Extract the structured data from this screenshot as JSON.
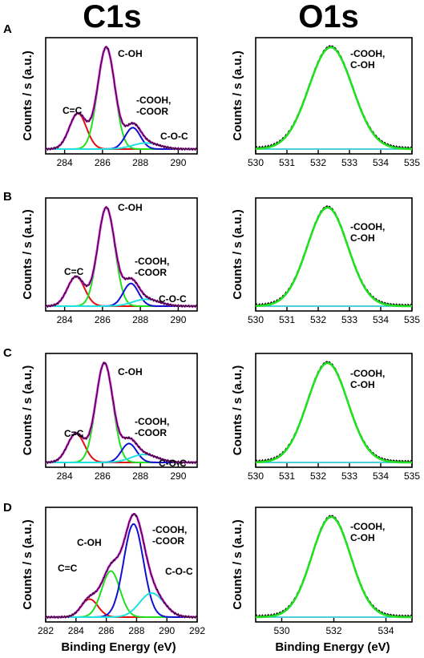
{
  "figure": {
    "col_titles": [
      "C1s",
      "O1s"
    ],
    "row_labels": [
      "A",
      "B",
      "C",
      "D"
    ],
    "ylabel": "Counts / s (a.u.)",
    "xlabel": "Binding Energy (eV)"
  },
  "colors": {
    "envelope": "#e020e0",
    "c_c": "#e01010",
    "c_oh": "#20e020",
    "cooh": "#1010d0",
    "coc": "#20e0e0",
    "raw": "#000000",
    "o1s_fit": "#20e020",
    "baseline": "#10c0d0"
  },
  "chart_data": [
    {
      "type": "line",
      "panel": "A",
      "region": "C1s",
      "xlim": [
        283,
        291
      ],
      "xticks": [
        284,
        286,
        288,
        290
      ],
      "tick_labels": [
        "284",
        "286",
        "288",
        "290"
      ],
      "peaks": [
        {
          "label": "C=C",
          "center": 284.7,
          "height": 0.35,
          "sigma": 0.45,
          "color": "#e01010"
        },
        {
          "label": "C-OH",
          "center": 286.2,
          "height": 1.0,
          "sigma": 0.45,
          "color": "#20e020"
        },
        {
          "label": "-COOH,\n-COOR",
          "center": 287.6,
          "height": 0.21,
          "sigma": 0.4,
          "color": "#1010d0"
        },
        {
          "label": "C-O-C",
          "center": 288.3,
          "height": 0.06,
          "sigma": 0.7,
          "color": "#20e0e0"
        }
      ]
    },
    {
      "type": "line",
      "panel": "A",
      "region": "O1s",
      "xlim": [
        530,
        535
      ],
      "xticks": [
        530,
        531,
        532,
        533,
        534,
        535
      ],
      "tick_labels": [
        "530",
        "531",
        "532",
        "533",
        "534",
        "535"
      ],
      "peaks": [
        {
          "label": "-COOH,\nC-OH",
          "center": 532.4,
          "height": 1.0,
          "sigma": 0.7,
          "color": "#20e020"
        }
      ]
    },
    {
      "type": "line",
      "panel": "B",
      "region": "C1s",
      "xlim": [
        283,
        291
      ],
      "xticks": [
        284,
        286,
        288,
        290
      ],
      "tick_labels": [
        "284",
        "286",
        "288",
        "290"
      ],
      "peaks": [
        {
          "label": "C=C",
          "center": 284.6,
          "height": 0.3,
          "sigma": 0.45,
          "color": "#e01010"
        },
        {
          "label": "C-OH",
          "center": 286.2,
          "height": 1.0,
          "sigma": 0.45,
          "color": "#20e020"
        },
        {
          "label": "-COOH,\n-COOR",
          "center": 287.5,
          "height": 0.23,
          "sigma": 0.4,
          "color": "#1010d0"
        },
        {
          "label": "C-O-C",
          "center": 288.3,
          "height": 0.07,
          "sigma": 0.7,
          "color": "#20e0e0"
        }
      ]
    },
    {
      "type": "line",
      "panel": "B",
      "region": "O1s",
      "xlim": [
        530,
        535
      ],
      "xticks": [
        530,
        531,
        532,
        533,
        534,
        535
      ],
      "tick_labels": [
        "530",
        "531",
        "532",
        "533",
        "534",
        "535"
      ],
      "peaks": [
        {
          "label": "-COOH,\nC-OH",
          "center": 532.3,
          "height": 1.0,
          "sigma": 0.65,
          "color": "#20e020"
        }
      ]
    },
    {
      "type": "line",
      "panel": "C",
      "region": "C1s",
      "xlim": [
        283,
        291
      ],
      "xticks": [
        284,
        286,
        288,
        290
      ],
      "tick_labels": [
        "284",
        "286",
        "288",
        "290"
      ],
      "peaks": [
        {
          "label": "C=C",
          "center": 284.6,
          "height": 0.29,
          "sigma": 0.45,
          "color": "#e01010"
        },
        {
          "label": "C-OH",
          "center": 286.1,
          "height": 1.0,
          "sigma": 0.45,
          "color": "#20e020"
        },
        {
          "label": "-COOH,\n-COOR",
          "center": 287.4,
          "height": 0.19,
          "sigma": 0.4,
          "color": "#1010d0"
        },
        {
          "label": "C-O-C",
          "center": 288.2,
          "height": 0.08,
          "sigma": 0.7,
          "color": "#20e0e0"
        }
      ]
    },
    {
      "type": "line",
      "panel": "C",
      "region": "O1s",
      "xlim": [
        530,
        535
      ],
      "xticks": [
        530,
        531,
        532,
        533,
        534,
        535
      ],
      "tick_labels": [
        "530",
        "531",
        "532",
        "533",
        "534",
        "535"
      ],
      "peaks": [
        {
          "label": "-COOH,\nC-OH",
          "center": 532.3,
          "height": 1.0,
          "sigma": 0.65,
          "color": "#20e020"
        }
      ]
    },
    {
      "type": "line",
      "panel": "D",
      "region": "C1s",
      "xlim": [
        282,
        292
      ],
      "xticks": [
        282,
        284,
        286,
        288,
        290,
        292
      ],
      "tick_labels": [
        "282",
        "284",
        "286",
        "288",
        "290",
        "292"
      ],
      "peaks": [
        {
          "label": "C=C",
          "center": 284.9,
          "height": 0.18,
          "sigma": 0.55,
          "color": "#e01010"
        },
        {
          "label": "C-OH",
          "center": 286.3,
          "height": 0.46,
          "sigma": 0.6,
          "color": "#20e020"
        },
        {
          "label": "-COOH,\n-COOR",
          "center": 287.8,
          "height": 0.93,
          "sigma": 0.65,
          "color": "#1010d0"
        },
        {
          "label": "C-O-C",
          "center": 289.0,
          "height": 0.24,
          "sigma": 0.8,
          "color": "#20e0e0"
        }
      ]
    },
    {
      "type": "line",
      "panel": "D",
      "region": "O1s",
      "xlim": [
        529,
        535
      ],
      "xticks": [
        530,
        532,
        534
      ],
      "tick_labels": [
        "530",
        "532",
        "534"
      ],
      "peaks": [
        {
          "label": "-COOH,\nC-OH",
          "center": 531.9,
          "height": 1.0,
          "sigma": 0.75,
          "color": "#20e020"
        }
      ]
    }
  ]
}
